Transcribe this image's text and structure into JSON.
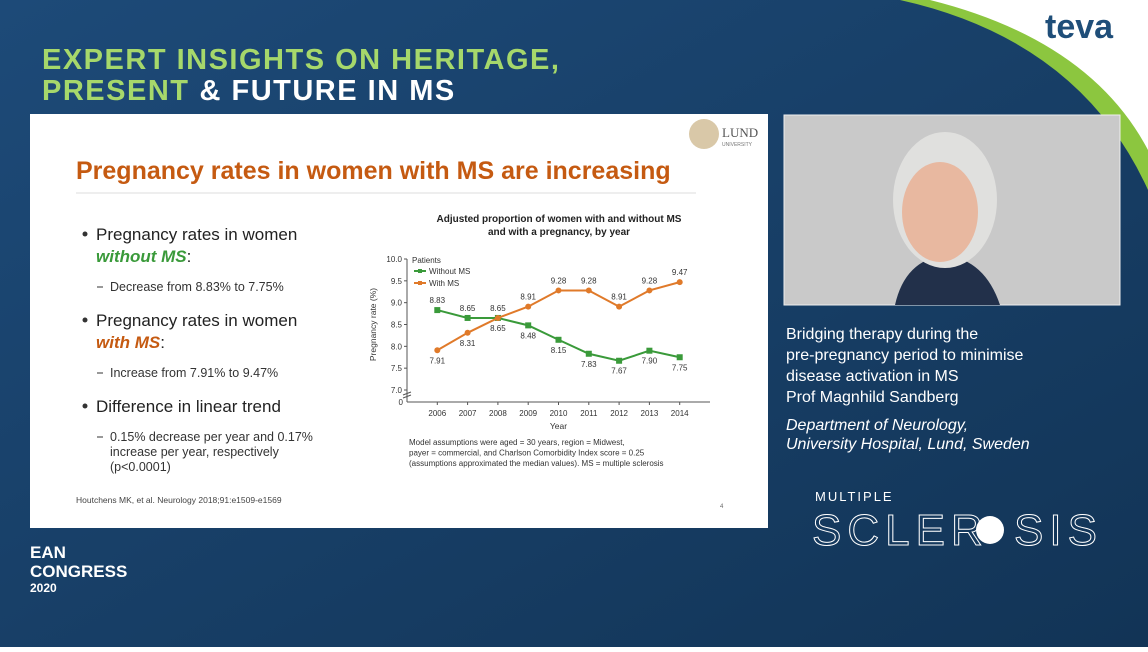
{
  "brand": {
    "logo": "teva"
  },
  "header": {
    "line1": "EXPERT INSIGHTS ON HERITAGE,",
    "line2_highlight": "PRESENT",
    "line2_rest": "& FUTURE IN MS"
  },
  "slide": {
    "title": "Pregnancy rates in women with MS are increasing",
    "logo": {
      "name": "LUND",
      "sub": "UNIVERSITY"
    },
    "bullets": [
      {
        "text": "Pregnancy rates in women",
        "emphasis": "without MS",
        "suffix": ":",
        "sub": [
          "Decrease from 8.83% to 7.75%"
        ]
      },
      {
        "text": "Pregnancy rates in women",
        "emphasis": "with MS",
        "suffix": ":",
        "sub": [
          "Increase from 7.91% to 9.47%"
        ]
      },
      {
        "text": "Difference in linear trend",
        "sub": [
          "0.15% decrease per year and 0.17%",
          "increase per year, respectively",
          "(p<0.0001)"
        ]
      }
    ],
    "chart": {
      "type": "line",
      "title": [
        "Adjusted proportion of women with and without MS",
        "and with a pregnancy, by year"
      ],
      "x_label": "Year",
      "y_label": "Pregnancy rate (%)",
      "legend_title": "Patients",
      "x": [
        2006,
        2007,
        2008,
        2009,
        2010,
        2011,
        2012,
        2013,
        2014
      ],
      "xlim": [
        2005,
        2015
      ],
      "ylim": [
        7.0,
        10.0
      ],
      "yticks": [
        {
          "value": 7.0,
          "label": "7.0"
        },
        7.5,
        {
          "value": 8.0,
          "label": "8.0"
        },
        8.5,
        {
          "value": 9.0,
          "label": "9.0"
        },
        9.5,
        {
          "value": 10.0,
          "label": "10.0"
        }
      ],
      "axis_break_label": "0",
      "series": [
        {
          "name": "Without MS",
          "color": "#3a9a3a",
          "values": [
            8.83,
            8.65,
            8.65,
            8.48,
            8.15,
            7.83,
            7.67,
            7.9,
            7.75
          ],
          "value_labels": [
            "8.83",
            "8.65",
            "8.65",
            "8.48",
            "8.15",
            "7.83",
            "7.67",
            "7.90",
            "7.75"
          ]
        },
        {
          "name": "With MS",
          "color": "#e07a2a",
          "values": [
            7.91,
            8.31,
            8.65,
            8.91,
            9.28,
            9.28,
            8.91,
            9.28,
            9.47
          ],
          "value_labels": [
            "7.91",
            "8.31",
            "8.65",
            "8.91",
            "9.28",
            "9.28",
            "8.91",
            "9.28",
            "9.47"
          ]
        }
      ],
      "notes": [
        "Model assumptions were aged = 30 years, region = Midwest,",
        "payer = commercial, and Charlson Comorbidity Index score = 0.25",
        "(assumptions approximated the median values). MS = multiple sclerosis"
      ]
    },
    "reference": "Houtchens MK, et al. Neurology 2018;91:e1509-e1569",
    "page": "4"
  },
  "speaker": {
    "talk": [
      "Bridging therapy during the",
      "pre-pregnancy period to minimise",
      "disease activation in MS"
    ],
    "name": "Prof Magnhild Sandberg",
    "affiliation": [
      "Department of Neurology,",
      "University Hospital, Lund, Sweden"
    ]
  },
  "event": {
    "ms_top": "MULTIPLE",
    "ms_left": "SCLER",
    "ms_right": "SIS",
    "ean": "EAN",
    "congress": "CONGRESS",
    "year": "2020"
  }
}
